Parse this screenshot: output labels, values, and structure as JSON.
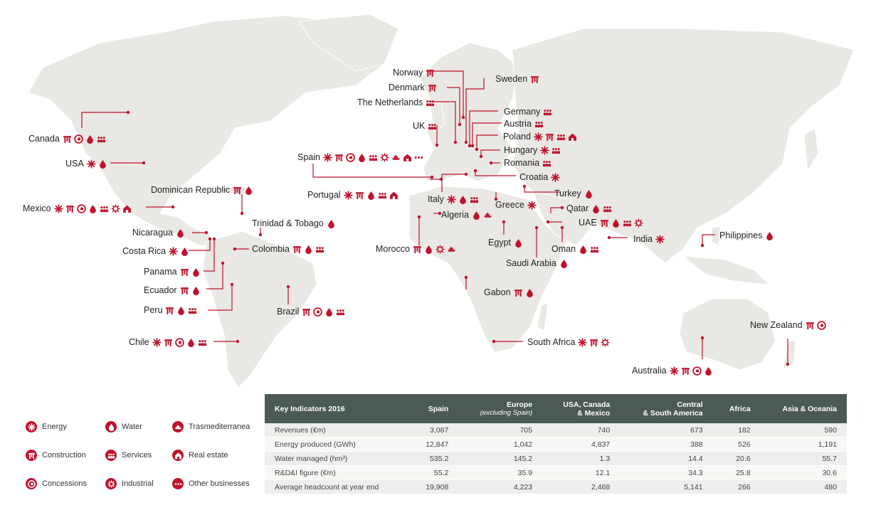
{
  "colors": {
    "accent": "#c0122c",
    "land": "#e9e8e4",
    "table_header": "#4c5a55"
  },
  "countries": [
    {
      "name": "Canada",
      "icons": [
        "construction",
        "concessions",
        "water",
        "services"
      ]
    },
    {
      "name": "USA",
      "icons": [
        "energy",
        "water"
      ]
    },
    {
      "name": "Mexico",
      "icons": [
        "energy",
        "construction",
        "concessions",
        "water",
        "services",
        "industrial",
        "real-estate"
      ]
    },
    {
      "name": "Dominican Republic",
      "icons": [
        "construction",
        "water"
      ]
    },
    {
      "name": "Trinidad & Tobago",
      "icons": [
        "water"
      ]
    },
    {
      "name": "Nicaragua",
      "icons": [
        "water"
      ]
    },
    {
      "name": "Costa Rica",
      "icons": [
        "energy",
        "water"
      ]
    },
    {
      "name": "Colombia",
      "icons": [
        "construction",
        "water",
        "services"
      ]
    },
    {
      "name": "Panama",
      "icons": [
        "construction",
        "water"
      ]
    },
    {
      "name": "Ecuador",
      "icons": [
        "construction",
        "water"
      ]
    },
    {
      "name": "Peru",
      "icons": [
        "construction",
        "water",
        "services"
      ]
    },
    {
      "name": "Brazil",
      "icons": [
        "construction",
        "concessions",
        "water",
        "services"
      ]
    },
    {
      "name": "Chile",
      "icons": [
        "energy",
        "construction",
        "concessions",
        "water",
        "services"
      ]
    },
    {
      "name": "Norway",
      "icons": [
        "construction"
      ]
    },
    {
      "name": "Denmark",
      "icons": [
        "construction"
      ]
    },
    {
      "name": "The Netherlands",
      "icons": [
        "services"
      ]
    },
    {
      "name": "UK",
      "icons": [
        "services"
      ]
    },
    {
      "name": "Spain",
      "icons": [
        "energy",
        "construction",
        "concessions",
        "water",
        "services",
        "industrial",
        "trasmediterranea",
        "real-estate",
        "other"
      ]
    },
    {
      "name": "Portugal",
      "icons": [
        "energy",
        "construction",
        "water",
        "services",
        "real-estate"
      ]
    },
    {
      "name": "Sweden",
      "icons": [
        "construction"
      ]
    },
    {
      "name": "Germany",
      "icons": [
        "services"
      ]
    },
    {
      "name": "Austria",
      "icons": [
        "services"
      ]
    },
    {
      "name": "Poland",
      "icons": [
        "energy",
        "construction",
        "services",
        "real-estate"
      ]
    },
    {
      "name": "Hungary",
      "icons": [
        "energy",
        "services"
      ]
    },
    {
      "name": "Romania",
      "icons": [
        "services"
      ]
    },
    {
      "name": "Croatia",
      "icons": [
        "energy"
      ]
    },
    {
      "name": "Turkey",
      "icons": [
        "water"
      ]
    },
    {
      "name": "Italy",
      "icons": [
        "energy",
        "water",
        "services"
      ]
    },
    {
      "name": "Greece",
      "icons": [
        "energy"
      ]
    },
    {
      "name": "Algeria",
      "icons": [
        "water",
        "trasmediterranea"
      ]
    },
    {
      "name": "Morocco",
      "icons": [
        "construction",
        "water",
        "industrial",
        "trasmediterranea"
      ]
    },
    {
      "name": "Egypt",
      "icons": [
        "water"
      ]
    },
    {
      "name": "Qatar",
      "icons": [
        "water",
        "services"
      ]
    },
    {
      "name": "UAE",
      "icons": [
        "construction",
        "water",
        "services",
        "industrial"
      ]
    },
    {
      "name": "Oman",
      "icons": [
        "water",
        "services"
      ]
    },
    {
      "name": "Saudi Arabia",
      "icons": [
        "water"
      ]
    },
    {
      "name": "India",
      "icons": [
        "energy"
      ]
    },
    {
      "name": "Philippines",
      "icons": [
        "water"
      ]
    },
    {
      "name": "Gabon",
      "icons": [
        "construction",
        "water"
      ]
    },
    {
      "name": "South Africa",
      "icons": [
        "energy",
        "construction",
        "industrial"
      ]
    },
    {
      "name": "New Zealand",
      "icons": [
        "construction",
        "concessions"
      ]
    },
    {
      "name": "Australia",
      "icons": [
        "energy",
        "construction",
        "concessions",
        "water"
      ]
    }
  ],
  "legend": [
    {
      "key": "energy",
      "label": "Energy"
    },
    {
      "key": "water",
      "label": "Water"
    },
    {
      "key": "trasmediterranea",
      "label": "Trasmediterranea"
    },
    {
      "key": "construction",
      "label": "Construction"
    },
    {
      "key": "services",
      "label": "Services"
    },
    {
      "key": "real-estate",
      "label": "Real estate"
    },
    {
      "key": "concessions",
      "label": "Concessions"
    },
    {
      "key": "industrial",
      "label": "Industrial"
    },
    {
      "key": "other",
      "label": "Other businesses"
    }
  ],
  "table": {
    "headers": [
      {
        "main": "Key Indicators 2016",
        "sub": ""
      },
      {
        "main": "Spain",
        "sub": ""
      },
      {
        "main": "Europe",
        "sub": "(excluding Spain)"
      },
      {
        "main": "USA, Canada",
        "sub": "& Mexico"
      },
      {
        "main": "Central",
        "sub": "& South America"
      },
      {
        "main": "Africa",
        "sub": ""
      },
      {
        "main": "Asia & Oceania",
        "sub": ""
      }
    ],
    "rows": [
      [
        "Revenues (€m)",
        "3,087",
        "705",
        "740",
        "673",
        "182",
        "590"
      ],
      [
        "Energy produced (GWh)",
        "12,847",
        "1,042",
        "4,837",
        "388",
        "526",
        "1,191"
      ],
      [
        "Water managed (hm³)",
        "535.2",
        "145.2",
        "1.3",
        "14.4",
        "20.6",
        "55.7"
      ],
      [
        "R&D&I figure (€m)",
        "55.2",
        "35.9",
        "12.1",
        "34.3",
        "25.8",
        "30.6"
      ],
      [
        "Average headcount at year end",
        "19,908",
        "4,223",
        "2,468",
        "5,141",
        "266",
        "480"
      ]
    ]
  }
}
